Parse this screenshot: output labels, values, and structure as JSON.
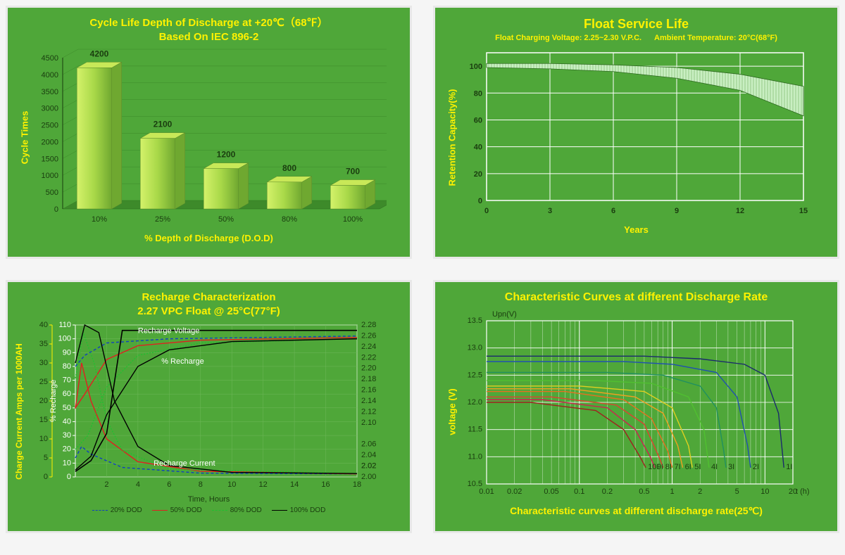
{
  "panel_bg": "#4fa739",
  "accent": "#fff200",
  "grid_color": "#ffffff",
  "chart1": {
    "type": "bar",
    "title_line1": "Cycle Life Depth of Discharge at +20℃（68℉）",
    "title_line2": "Based On IEC 896-2",
    "ylabel": "Cycle Times",
    "xlabel": "% Depth of Discharge (D.O.D)",
    "categories": [
      "10%",
      "25%",
      "50%",
      "80%",
      "100%"
    ],
    "values": [
      4200,
      2100,
      1200,
      800,
      700
    ],
    "yticks": [
      0,
      500,
      1000,
      1500,
      2000,
      2500,
      3000,
      3500,
      4000,
      4500
    ],
    "ylim": [
      0,
      4500
    ],
    "bar_grad_light": "#d4f26a",
    "bar_grad_dark": "#7bb83a",
    "bar_top": "#c8e858",
    "tick_color": "#1a3d0f"
  },
  "chart2": {
    "type": "area-band",
    "title": "Float Service Life",
    "subtitle_left": "Float Charging  Voltage: 2.25~2.30 V.P.C.",
    "subtitle_right": "Ambient Temperature: 20°C(68°F)",
    "ylabel": "Retention Capacity(%)",
    "xlabel": "Years",
    "xticks": [
      0,
      3,
      6,
      9,
      12,
      15
    ],
    "yticks": [
      0,
      20,
      40,
      60,
      80,
      100
    ],
    "xlim": [
      0,
      15
    ],
    "ylim": [
      0,
      110
    ],
    "band_upper": [
      [
        0,
        102
      ],
      [
        3,
        102
      ],
      [
        6,
        101
      ],
      [
        9,
        99
      ],
      [
        12,
        94
      ],
      [
        15,
        85
      ]
    ],
    "band_lower": [
      [
        0,
        99
      ],
      [
        3,
        98
      ],
      [
        6,
        96
      ],
      [
        9,
        91
      ],
      [
        12,
        82
      ],
      [
        15,
        63
      ]
    ],
    "band_color": "#c9efc2",
    "band_hatch": "#7fb86f"
  },
  "chart3": {
    "type": "line-multi-axis",
    "title_line1": "Recharge Characterization",
    "title_line2": "2.27 VPC Float @ 25°C(77°F)",
    "ylabel_left": "Charge Current Amps per 1000AH",
    "ylabel_inner": "% Recharge",
    "xlabel": "Time, Hours",
    "xticks": [
      2,
      4,
      6,
      8,
      10,
      12,
      14,
      16,
      18
    ],
    "xlim": [
      0,
      18
    ],
    "y1_ticks": [
      0,
      5,
      10,
      15,
      20,
      25,
      30,
      35,
      40
    ],
    "y1_lim": [
      0,
      40
    ],
    "y2_ticks": [
      0,
      10,
      20,
      30,
      40,
      50,
      60,
      70,
      80,
      90,
      100,
      110
    ],
    "y2_lim": [
      0,
      110
    ],
    "y3_ticks": [
      2.0,
      2.02,
      2.04,
      2.06,
      2.02,
      2.1,
      2.12,
      2.14,
      2.16,
      2.18,
      2.2,
      2.22,
      2.24,
      2.26,
      2.28
    ],
    "y3_lim": [
      2.0,
      2.28
    ],
    "annotations": {
      "recharge_voltage": "Recharge Voltage",
      "pct_recharge": "% Recharge",
      "recharge_current": "Recharge Current"
    },
    "legend": [
      {
        "label": "20% DOD",
        "color": "#1040c0",
        "dash": "4 3"
      },
      {
        "label": "50% DOD",
        "color": "#e02020",
        "dash": ""
      },
      {
        "label": "80% DOD",
        "color": "#20c030",
        "dash": "2 2"
      },
      {
        "label": "100% DOD",
        "color": "#000000",
        "dash": ""
      }
    ],
    "curves_recharge_pct": {
      "20": [
        [
          0,
          80
        ],
        [
          0.6,
          88
        ],
        [
          2,
          97
        ],
        [
          6,
          100
        ],
        [
          18,
          102
        ]
      ],
      "50": [
        [
          0,
          50
        ],
        [
          0.6,
          60
        ],
        [
          2,
          85
        ],
        [
          4,
          95
        ],
        [
          8,
          99
        ],
        [
          18,
          101
        ]
      ],
      "80": [
        [
          0,
          20
        ],
        [
          0.8,
          30
        ],
        [
          2,
          65
        ],
        [
          4,
          88
        ],
        [
          8,
          97
        ],
        [
          18,
          100
        ]
      ],
      "100": [
        [
          0,
          5
        ],
        [
          1,
          15
        ],
        [
          2,
          45
        ],
        [
          4,
          80
        ],
        [
          6,
          92
        ],
        [
          10,
          98
        ],
        [
          18,
          100
        ]
      ]
    },
    "curves_current": {
      "20": [
        [
          0,
          5
        ],
        [
          0.4,
          8
        ],
        [
          1,
          6
        ],
        [
          3,
          2.5
        ],
        [
          8,
          1
        ],
        [
          18,
          0.8
        ]
      ],
      "50": [
        [
          0,
          18
        ],
        [
          0.4,
          30
        ],
        [
          1,
          20
        ],
        [
          2,
          10
        ],
        [
          4,
          4
        ],
        [
          8,
          1.5
        ],
        [
          18,
          0.8
        ]
      ],
      "80": [
        [
          0,
          26
        ],
        [
          0.5,
          38
        ],
        [
          1.2,
          30
        ],
        [
          2,
          15
        ],
        [
          3,
          7
        ],
        [
          6,
          2
        ],
        [
          18,
          0.9
        ]
      ],
      "100": [
        [
          0,
          30
        ],
        [
          0.6,
          40
        ],
        [
          1.5,
          38
        ],
        [
          2.5,
          20
        ],
        [
          4,
          8
        ],
        [
          6,
          3
        ],
        [
          10,
          1.2
        ],
        [
          18,
          0.9
        ]
      ]
    },
    "curves_voltage": {
      "100": [
        [
          0,
          2.01
        ],
        [
          1,
          2.03
        ],
        [
          2,
          2.08
        ],
        [
          3,
          2.27
        ],
        [
          4,
          2.27
        ],
        [
          18,
          2.27
        ]
      ]
    }
  },
  "chart4": {
    "type": "line-logx",
    "title": "Characteristic Curves at different Discharge Rate",
    "bottom_caption": "Characteristic curves at different discharge rate(25℃)",
    "ylabel": "voltage (V)",
    "y_unit_label": "Upn(V)",
    "x_unit_label": "t (h)",
    "xlim_log": [
      0.01,
      20
    ],
    "xticks": [
      0.01,
      0.02,
      0.05,
      0.1,
      0.2,
      0.5,
      1,
      2,
      5,
      10,
      20
    ],
    "yticks": [
      10.5,
      11.0,
      11.5,
      12.0,
      12.5,
      13.0,
      13.5
    ],
    "ylim": [
      10.5,
      13.5
    ],
    "series": [
      {
        "label": "1I",
        "color": "#1a2a6c",
        "pts": [
          [
            0.01,
            12.85
          ],
          [
            0.5,
            12.85
          ],
          [
            2,
            12.8
          ],
          [
            6,
            12.7
          ],
          [
            10,
            12.5
          ],
          [
            14,
            11.8
          ],
          [
            16,
            10.8
          ]
        ]
      },
      {
        "label": "2I",
        "color": "#2050b0",
        "pts": [
          [
            0.01,
            12.75
          ],
          [
            0.3,
            12.75
          ],
          [
            1,
            12.7
          ],
          [
            3,
            12.55
          ],
          [
            5,
            12.1
          ],
          [
            6.5,
            11.2
          ],
          [
            7,
            10.8
          ]
        ]
      },
      {
        "label": "3I",
        "color": "#209060",
        "pts": [
          [
            0.01,
            12.55
          ],
          [
            0.2,
            12.55
          ],
          [
            0.8,
            12.5
          ],
          [
            2,
            12.3
          ],
          [
            3,
            11.9
          ],
          [
            3.6,
            11.1
          ],
          [
            3.8,
            10.8
          ]
        ]
      },
      {
        "label": "4I",
        "color": "#50c030",
        "pts": [
          [
            0.01,
            12.4
          ],
          [
            0.15,
            12.4
          ],
          [
            0.6,
            12.35
          ],
          [
            1.5,
            12.1
          ],
          [
            2.2,
            11.5
          ],
          [
            2.5,
            10.8
          ]
        ]
      },
      {
        "label": "5I",
        "color": "#e0d020",
        "pts": [
          [
            0.01,
            12.3
          ],
          [
            0.1,
            12.3
          ],
          [
            0.5,
            12.2
          ],
          [
            1,
            11.9
          ],
          [
            1.5,
            11.2
          ],
          [
            1.65,
            10.8
          ]
        ]
      },
      {
        "label": "6I",
        "color": "#f0a020",
        "pts": [
          [
            0.01,
            12.25
          ],
          [
            0.08,
            12.25
          ],
          [
            0.4,
            12.1
          ],
          [
            0.8,
            11.8
          ],
          [
            1.15,
            11.2
          ],
          [
            1.3,
            10.8
          ]
        ]
      },
      {
        "label": "7I",
        "color": "#e87020",
        "pts": [
          [
            0.01,
            12.2
          ],
          [
            0.07,
            12.2
          ],
          [
            0.3,
            12.05
          ],
          [
            0.6,
            11.7
          ],
          [
            0.9,
            11.1
          ],
          [
            1.0,
            10.8
          ]
        ]
      },
      {
        "label": "8I",
        "color": "#e04030",
        "pts": [
          [
            0.01,
            12.1
          ],
          [
            0.05,
            12.1
          ],
          [
            0.25,
            11.95
          ],
          [
            0.5,
            11.6
          ],
          [
            0.72,
            11.0
          ],
          [
            0.8,
            10.8
          ]
        ]
      },
      {
        "label": "9I",
        "color": "#d02050",
        "pts": [
          [
            0.01,
            12.05
          ],
          [
            0.04,
            12.05
          ],
          [
            0.2,
            11.9
          ],
          [
            0.4,
            11.5
          ],
          [
            0.58,
            11.0
          ],
          [
            0.65,
            10.8
          ]
        ]
      },
      {
        "label": "10I",
        "color": "#a02020",
        "pts": [
          [
            0.01,
            12.0
          ],
          [
            0.03,
            12.0
          ],
          [
            0.15,
            11.85
          ],
          [
            0.3,
            11.5
          ],
          [
            0.45,
            11.0
          ],
          [
            0.52,
            10.8
          ]
        ]
      }
    ]
  }
}
